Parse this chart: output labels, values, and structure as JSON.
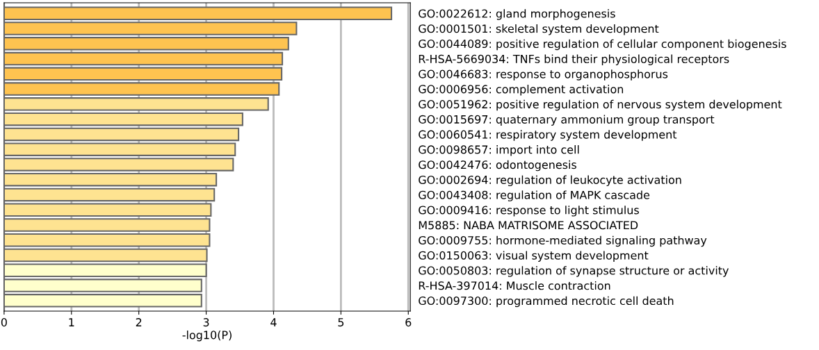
{
  "chart_data": {
    "type": "bar",
    "orientation": "horizontal",
    "xlabel": "-log10(P)",
    "categories": [
      "GO:0022612: gland morphogenesis",
      "GO:0001501: skeletal system development",
      "GO:0044089: positive regulation of cellular component biogenesis",
      "R-HSA-5669034: TNFs bind their physiological receptors",
      "GO:0046683: response to organophosphorus",
      "GO:0006956: complement activation",
      "GO:0051962: positive regulation of nervous system development",
      "GO:0015697: quaternary ammonium group transport",
      "GO:0060541: respiratory system development",
      "GO:0098657: import into cell",
      "GO:0042476: odontogenesis",
      "GO:0002694: regulation of leukocyte activation",
      "GO:0043408: regulation of MAPK cascade",
      "GO:0009416: response to light stimulus",
      "M5885: NABA MATRISOME ASSOCIATED",
      "GO:0009755: hormone-mediated signaling pathway",
      "GO:0150063: visual system development",
      "GO:0050803: regulation of synapse structure or activity",
      "R-HSA-397014: Muscle contraction",
      "GO:0097300: programmed necrotic cell death"
    ],
    "values": [
      5.75,
      4.34,
      4.22,
      4.13,
      4.12,
      4.08,
      3.92,
      3.54,
      3.48,
      3.43,
      3.4,
      3.15,
      3.12,
      3.07,
      3.05,
      3.05,
      3.01,
      3.0,
      2.93,
      2.93
    ],
    "colors": [
      "#fec350",
      "#fec350",
      "#fec350",
      "#fec350",
      "#fec350",
      "#fec350",
      "#fee391",
      "#fee391",
      "#fee391",
      "#fee391",
      "#fee391",
      "#fee391",
      "#fee391",
      "#fee391",
      "#fee391",
      "#fee391",
      "#fee391",
      "#ffffcc",
      "#ffffcc",
      "#ffffcc"
    ],
    "xlim": [
      0,
      6.03
    ],
    "xticks": [
      0,
      1,
      2,
      3,
      4,
      5,
      6
    ],
    "grid": "x"
  }
}
